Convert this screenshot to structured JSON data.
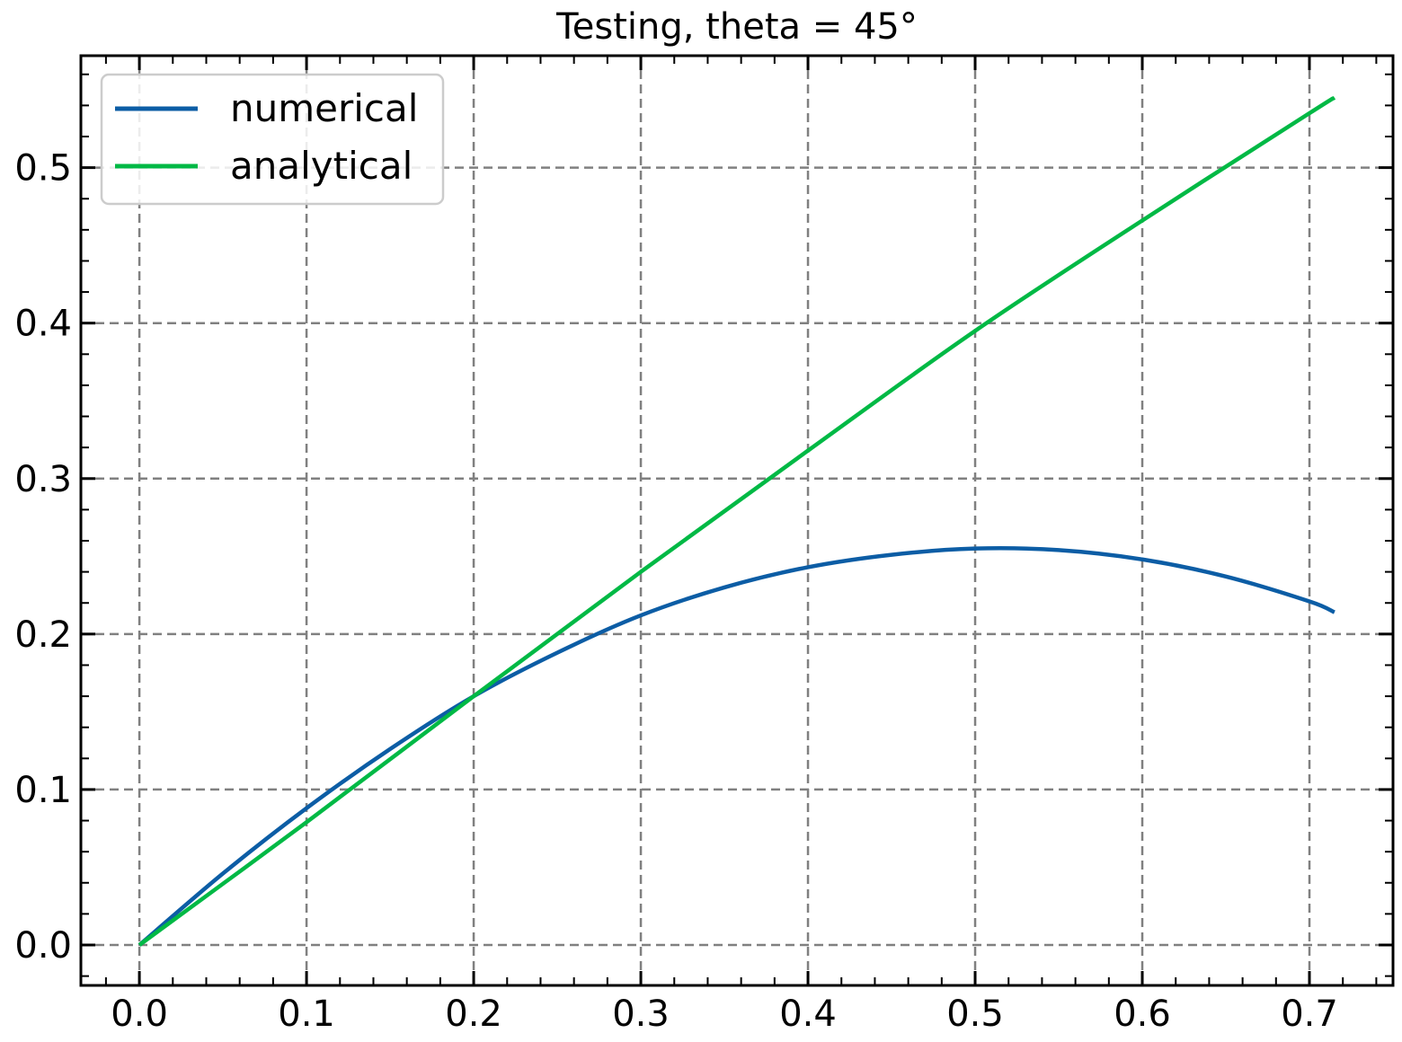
{
  "chart_data": {
    "type": "line",
    "title": "Testing, theta = 45°",
    "xlabel": "",
    "ylabel": "",
    "xlim": [
      -0.035,
      0.75
    ],
    "ylim": [
      -0.026,
      0.572
    ],
    "x_ticks": [
      0.0,
      0.1,
      0.2,
      0.3,
      0.4,
      0.5,
      0.6,
      0.7
    ],
    "x_tick_labels": [
      "0.0",
      "0.1",
      "0.2",
      "0.3",
      "0.4",
      "0.5",
      "0.6",
      "0.7"
    ],
    "y_ticks": [
      0.0,
      0.1,
      0.2,
      0.3,
      0.4,
      0.5
    ],
    "y_tick_labels": [
      "0.0",
      "0.1",
      "0.2",
      "0.3",
      "0.4",
      "0.5"
    ],
    "grid": true,
    "legend_position": "top-left",
    "series": [
      {
        "name": "numerical",
        "color": "#0c5da5",
        "x": [
          0.0,
          0.05,
          0.1,
          0.15,
          0.2,
          0.25,
          0.3,
          0.35,
          0.4,
          0.45,
          0.5,
          0.55,
          0.6,
          0.65,
          0.7,
          0.715
        ],
        "y": [
          0.0,
          0.046,
          0.088,
          0.126,
          0.16,
          0.188,
          0.212,
          0.23,
          0.243,
          0.251,
          0.255,
          0.254,
          0.248,
          0.237,
          0.221,
          0.214
        ]
      },
      {
        "name": "analytical",
        "color": "#00b945",
        "x": [
          0.0,
          0.1,
          0.2,
          0.3,
          0.4,
          0.5,
          0.6,
          0.7,
          0.715
        ],
        "y": [
          0.0,
          0.079,
          0.16,
          0.24,
          0.318,
          0.395,
          0.466,
          0.535,
          0.545
        ]
      }
    ]
  }
}
